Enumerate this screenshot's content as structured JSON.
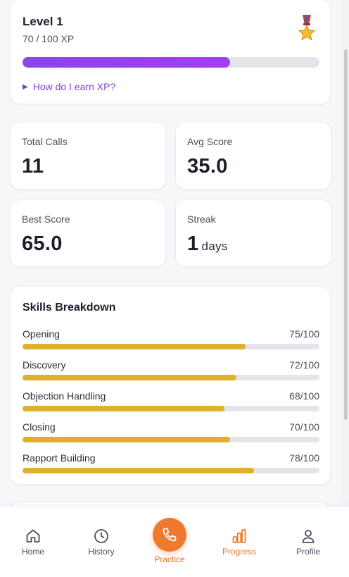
{
  "level": {
    "title": "Level 1",
    "xp_text": "70 / 100 XP",
    "xp_current": 70,
    "xp_max": 100,
    "earn_xp_label": "How do I earn XP?",
    "medal_icon": "military-medal-icon"
  },
  "stats": {
    "total_calls": {
      "label": "Total Calls",
      "value": "11"
    },
    "avg_score": {
      "label": "Avg Score",
      "value": "35.0"
    },
    "best_score": {
      "label": "Best Score",
      "value": "65.0"
    },
    "streak": {
      "label": "Streak",
      "value": "1",
      "unit": "days"
    }
  },
  "skills": {
    "title": "Skills Breakdown",
    "items": [
      {
        "name": "Opening",
        "score": "75/100",
        "value": 75
      },
      {
        "name": "Discovery",
        "score": "72/100",
        "value": 72
      },
      {
        "name": "Objection Handling",
        "score": "68/100",
        "value": 68
      },
      {
        "name": "Closing",
        "score": "70/100",
        "value": 70
      },
      {
        "name": "Rapport Building",
        "score": "78/100",
        "value": 78
      }
    ]
  },
  "nav": {
    "home": "Home",
    "history": "History",
    "practice": "Practice",
    "progress": "Progress",
    "profile": "Profile",
    "active": "progress"
  },
  "colors": {
    "accent_orange": "#ef7a2e",
    "xp_purple": "#8b45e8",
    "skill_gold": "#dfb02c"
  }
}
